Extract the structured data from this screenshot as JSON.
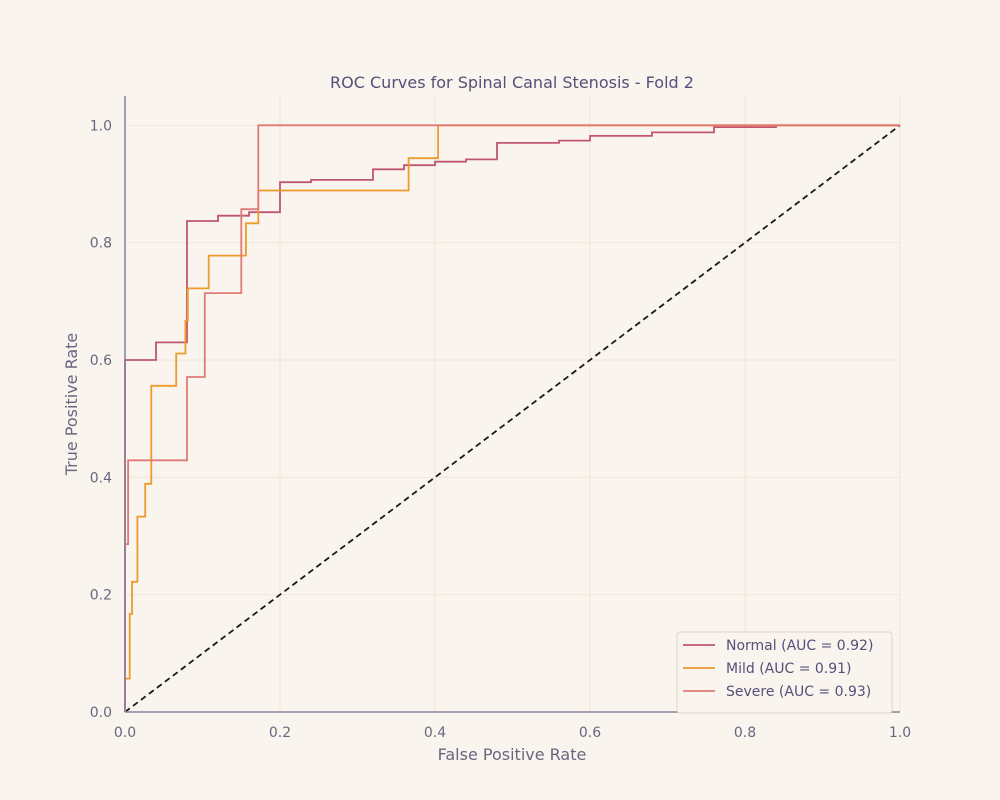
{
  "chart_data": {
    "type": "line",
    "title": "ROC Curves for Spinal Canal Stenosis - Fold 2",
    "xlabel": "False Positive Rate",
    "ylabel": "True Positive Rate",
    "xlim": [
      0,
      1
    ],
    "ylim": [
      0,
      1.05
    ],
    "xticks": [
      0,
      0.2,
      0.4,
      0.6,
      0.8,
      1
    ],
    "yticks": [
      0,
      0.2,
      0.4,
      0.6,
      0.8,
      1
    ],
    "xtick_labels": [
      "0.0",
      "0.2",
      "0.4",
      "0.6",
      "0.8",
      "1.0"
    ],
    "ytick_labels": [
      "0.0",
      "0.2",
      "0.4",
      "0.6",
      "0.8",
      "1.0"
    ],
    "grid": true,
    "legend_position": "bottom-right",
    "series": [
      {
        "name": "Normal (AUC = 0.92)",
        "color": "#c0566e",
        "x": [
          0,
          0,
          0.04,
          0.04,
          0.08,
          0.08,
          0.12,
          0.12,
          0.16,
          0.16,
          0.2,
          0.2,
          0.24,
          0.24,
          0.32,
          0.32,
          0.36,
          0.36,
          0.4,
          0.4,
          0.44,
          0.44,
          0.48,
          0.48,
          0.56,
          0.56,
          0.6,
          0.6,
          0.68,
          0.68,
          0.76,
          0.76,
          0.84,
          0.84,
          1
        ],
        "y": [
          0,
          0.6,
          0.6,
          0.63,
          0.63,
          0.837,
          0.837,
          0.846,
          0.846,
          0.852,
          0.852,
          0.903,
          0.903,
          0.907,
          0.907,
          0.925,
          0.925,
          0.932,
          0.932,
          0.938,
          0.938,
          0.942,
          0.942,
          0.97,
          0.97,
          0.974,
          0.974,
          0.982,
          0.982,
          0.988,
          0.988,
          0.997,
          0.997,
          1,
          1
        ]
      },
      {
        "name": "Mild (AUC = 0.91)",
        "color": "#ee9a2c",
        "x": [
          0,
          0.006,
          0.006,
          0.009,
          0.009,
          0.016,
          0.016,
          0.026,
          0.026,
          0.034,
          0.034,
          0.066,
          0.066,
          0.078,
          0.078,
          0.081,
          0.081,
          0.108,
          0.108,
          0.156,
          0.156,
          0.172,
          0.172,
          0.366,
          0.366,
          0.404,
          0.404,
          1
        ],
        "y": [
          0.057,
          0.057,
          0.167,
          0.167,
          0.222,
          0.222,
          0.333,
          0.333,
          0.389,
          0.389,
          0.556,
          0.556,
          0.611,
          0.611,
          0.667,
          0.667,
          0.722,
          0.722,
          0.778,
          0.778,
          0.833,
          0.833,
          0.889,
          0.889,
          0.944,
          0.944,
          1,
          1
        ]
      },
      {
        "name": "Severe (AUC = 0.93)",
        "color": "#e07a78",
        "x": [
          0,
          0.004,
          0.004,
          0.08,
          0.08,
          0.103,
          0.103,
          0.15,
          0.15,
          0.172,
          0.172,
          1
        ],
        "y": [
          0.286,
          0.286,
          0.429,
          0.429,
          0.571,
          0.571,
          0.714,
          0.714,
          0.857,
          0.857,
          1,
          1
        ]
      }
    ],
    "reference_line": {
      "x": [
        0,
        1
      ],
      "y": [
        0,
        1
      ],
      "color": "#1a1a1a",
      "style": "dashed"
    }
  },
  "colors": {
    "background": "#faf4ee",
    "grid": "#f2e6d6",
    "axis": "#8a8499"
  }
}
